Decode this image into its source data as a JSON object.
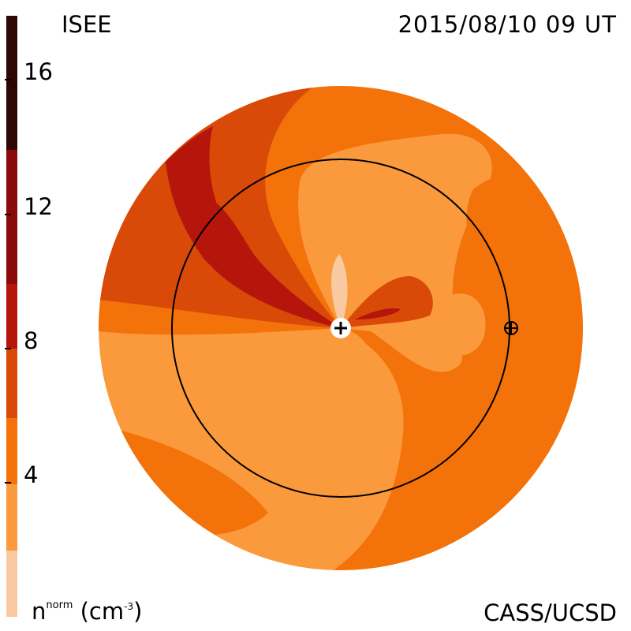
{
  "header": {
    "source": "ISEE",
    "timestamp": "2015/08/10 09 UT"
  },
  "footer": {
    "credit": "CASS/UCSD"
  },
  "colorbar": {
    "unit_prefix": "n",
    "unit_superscript": "norm",
    "unit_open": " (cm",
    "unit_exponent": "-3",
    "unit_close": ")",
    "ticks": [
      "4",
      "8",
      "12",
      "16"
    ],
    "range": [
      0,
      18
    ],
    "bands": [
      {
        "min": 0,
        "max": 2,
        "color": "#f9c9a1"
      },
      {
        "min": 2,
        "max": 6,
        "color": "#fb9a3c"
      },
      {
        "min": 6,
        "max": 10,
        "color": "#f3720a"
      },
      {
        "min": 10,
        "max": 14,
        "color": "#d94a09"
      },
      {
        "min": 14,
        "max": 18,
        "color": "#b5150b"
      }
    ],
    "upper_bands": [
      {
        "color": "#8b0a0a"
      },
      {
        "color": "#5e0808"
      },
      {
        "color": "#2e0606"
      }
    ]
  },
  "map": {
    "disk_base_color": "#fb9a3c",
    "orbit_color": "#000000",
    "sun_marker": "+",
    "earth_marker": "⊕"
  }
}
